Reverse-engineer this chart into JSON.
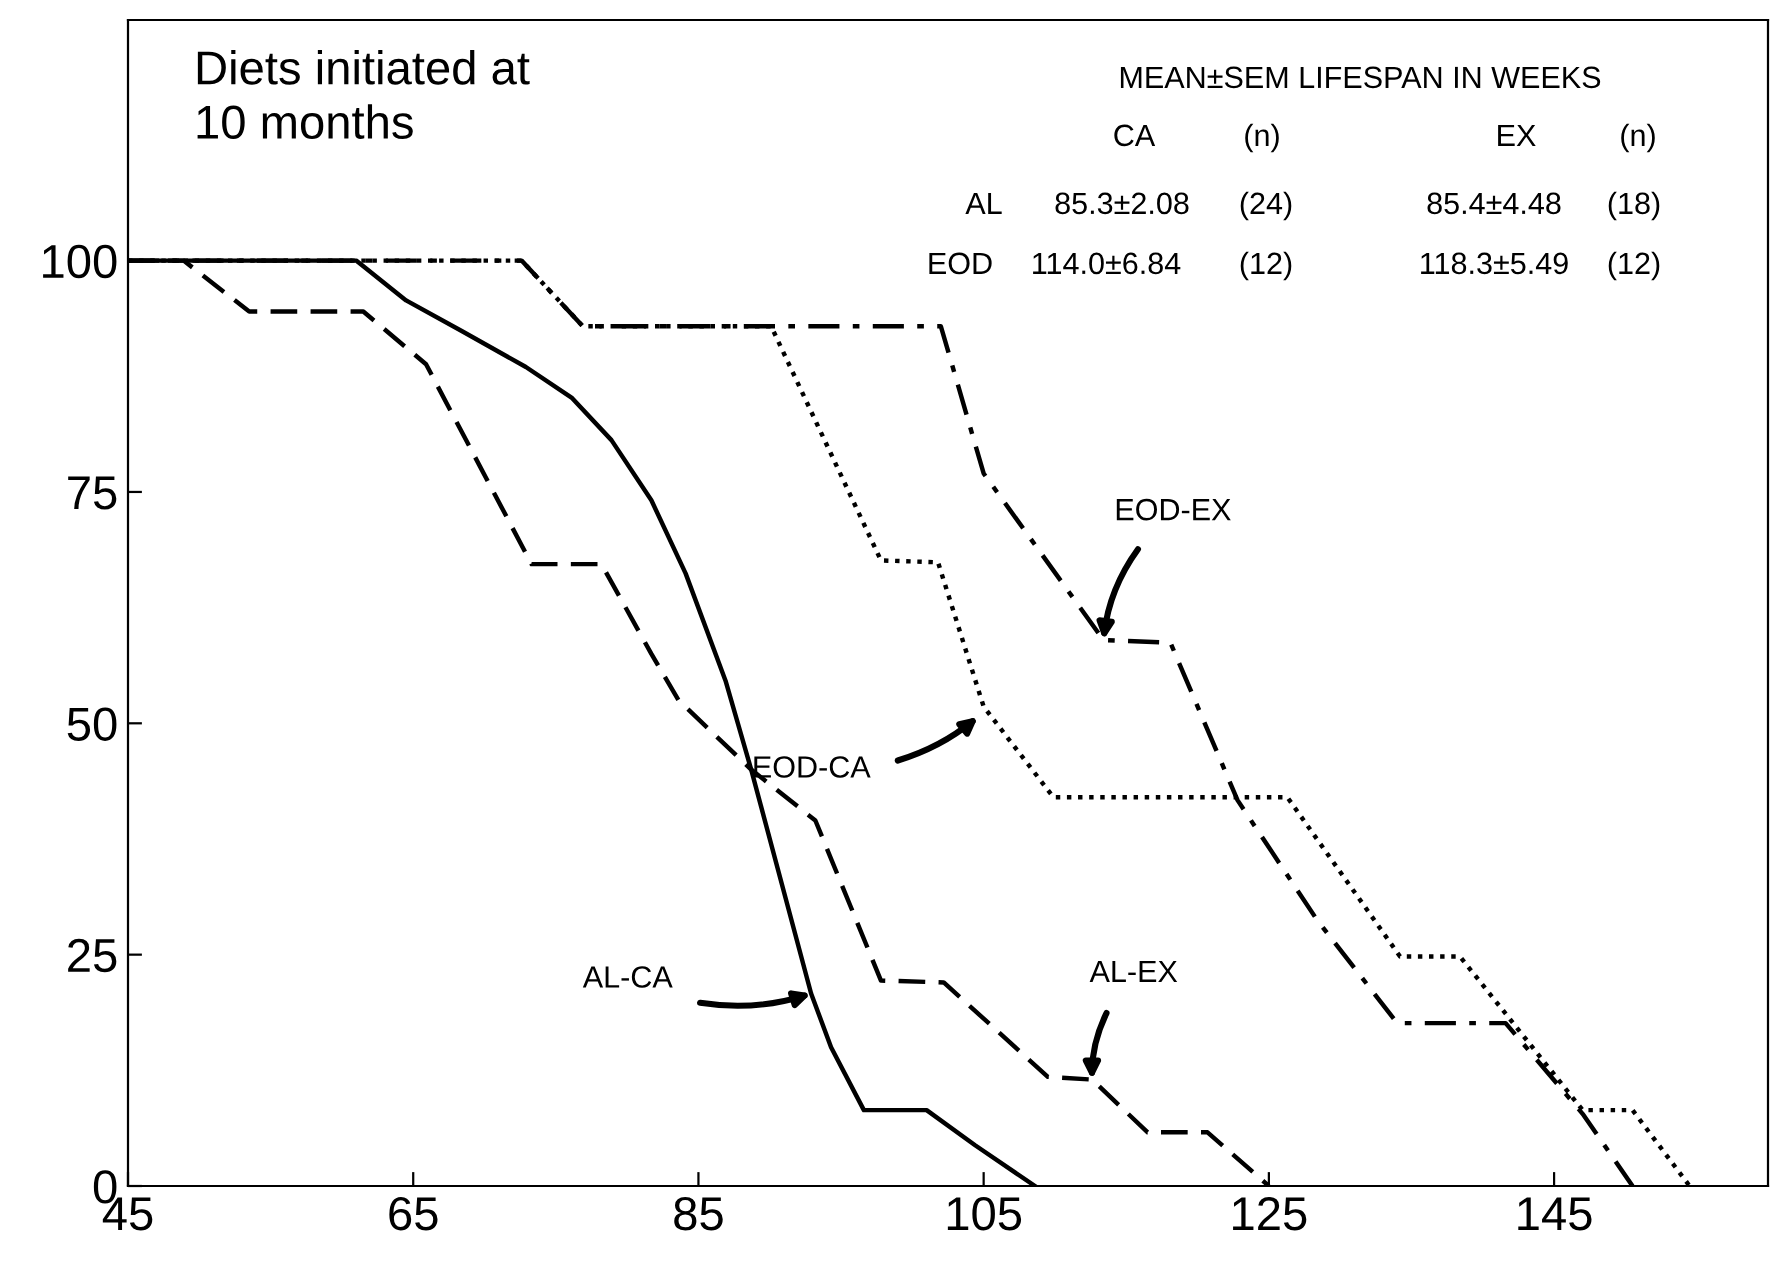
{
  "chart_data": {
    "type": "line",
    "xlim": [
      45,
      160
    ],
    "ylim": [
      0,
      126
    ],
    "xticks": [
      45,
      65,
      85,
      105,
      125,
      145
    ],
    "yticks": [
      0,
      25,
      50,
      75,
      100
    ],
    "grid": false,
    "series": [
      {
        "color": "#000000",
        "line_style": "solid",
        "x": [
          45,
          61,
          64.5,
          68.4,
          72.9,
          76.1,
          78.9,
          81.7,
          84.1,
          86.9,
          88.7,
          92.9,
          94.3,
          96.6,
          101,
          104.4,
          108.6
        ],
        "values": [
          100,
          100,
          95.7,
          92.4,
          88.5,
          85.2,
          80.6,
          74.1,
          66.2,
          54.6,
          45,
          20.8,
          15,
          8.2,
          8.2,
          4.4,
          0
        ]
      },
      {
        "color": "#000000",
        "line_style": "dashed",
        "x": [
          45,
          48.9,
          53.5,
          61.5,
          65.9,
          73.3,
          78.2,
          81.7,
          83.6,
          88.7,
          93.2,
          97.8,
          102.2,
          109.5,
          112.6,
          116.5,
          120.7,
          125
        ],
        "values": [
          100,
          100,
          94.5,
          94.5,
          88.8,
          67.2,
          67.2,
          57.5,
          52.5,
          45,
          39.5,
          22.2,
          22,
          11.8,
          11.5,
          5.8,
          5.8,
          0
        ]
      },
      {
        "color": "#000000",
        "line_style": "dotted",
        "x": [
          45,
          72.6,
          76.9,
          90.1,
          97.8,
          101.8,
          105,
          109.9,
          126.3,
          134.2,
          138.4,
          147,
          150.5,
          154.5
        ],
        "values": [
          100,
          100,
          92.9,
          92.9,
          67.6,
          67.4,
          51.8,
          42,
          42,
          24.8,
          24.8,
          8.2,
          8.2,
          0
        ]
      },
      {
        "color": "#000000",
        "line_style": "dashdot",
        "x": [
          45,
          72.6,
          76.9,
          102,
          105,
          113.4,
          118.1,
          122.8,
          128.4,
          134,
          141.6,
          147,
          150.5
        ],
        "values": [
          100,
          100,
          92.9,
          92.9,
          77,
          59,
          58.7,
          41.7,
          28.7,
          17.6,
          17.6,
          7.8,
          0
        ]
      }
    ],
    "annotations": [
      "Diets initiated at\n10 months",
      "MEAN±SEM LIFESPAN IN WEEKS",
      "CA",
      "(n)",
      "EX",
      "(n)",
      "AL",
      "85.3±2.08",
      "(24)",
      "85.4±4.48",
      "(18)",
      "EOD",
      "114.0±6.84",
      "(12)",
      "118.3±5.49",
      "(12)",
      {
        "text": "AL-CA",
        "x": 92.9,
        "y": 20.8
      },
      {
        "text": "AL-EX",
        "x": 112.6,
        "y": 11.5
      },
      {
        "text": "EOD-CA",
        "x": 104.6,
        "y": 50.7
      },
      {
        "text": "EOD-EX",
        "x": 113.4,
        "y": 59
      }
    ]
  }
}
